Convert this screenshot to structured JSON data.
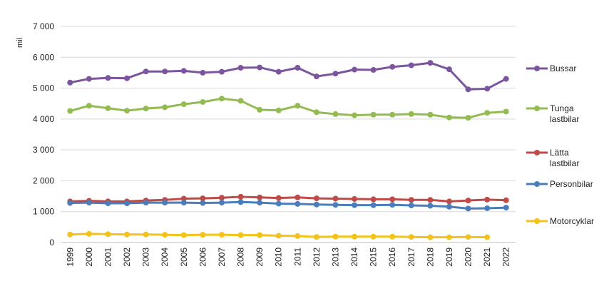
{
  "chart_data": {
    "type": "line",
    "title": "",
    "xlabel": "",
    "ylabel": "mil",
    "ylim": [
      0,
      7000
    ],
    "yticks": [
      0,
      1000,
      2000,
      3000,
      4000,
      5000,
      6000,
      7000
    ],
    "ytick_labels": [
      "0",
      "1 000",
      "2 000",
      "3 000",
      "4 000",
      "5 000",
      "6 000",
      "7 000"
    ],
    "grid": true,
    "legend_position": "right",
    "categories": [
      "1999",
      "2000",
      "2001",
      "2002",
      "2003",
      "2004",
      "2005",
      "2006",
      "2007",
      "2008",
      "2009",
      "2010",
      "2011",
      "2012",
      "2013",
      "2014",
      "2015",
      "2016",
      "2017",
      "2018",
      "2019",
      "2020",
      "2021",
      "2022"
    ],
    "series": [
      {
        "name": "Bussar",
        "legend_lines": [
          "Bussar"
        ],
        "color": "#7B559E",
        "values": [
          5180,
          5300,
          5330,
          5320,
          5540,
          5540,
          5560,
          5500,
          5530,
          5660,
          5670,
          5530,
          5660,
          5380,
          5470,
          5600,
          5590,
          5690,
          5740,
          5820,
          5610,
          4960,
          4980,
          5300
        ]
      },
      {
        "name": "Tunga lastbilar",
        "legend_lines": [
          "Tunga",
          "lastbilar"
        ],
        "color": "#94BB52",
        "values": [
          4260,
          4430,
          4350,
          4270,
          4340,
          4380,
          4480,
          4550,
          4660,
          4590,
          4300,
          4280,
          4430,
          4220,
          4160,
          4120,
          4140,
          4140,
          4160,
          4140,
          4050,
          4040,
          4200,
          4240
        ]
      },
      {
        "name": "Lätta lastbilar",
        "legend_lines": [
          "Lätta",
          "lastbilar"
        ],
        "color": "#BE4B48",
        "values": [
          1330,
          1350,
          1330,
          1330,
          1360,
          1380,
          1420,
          1430,
          1450,
          1480,
          1460,
          1440,
          1460,
          1430,
          1420,
          1410,
          1400,
          1400,
          1380,
          1380,
          1330,
          1360,
          1390,
          1370
        ]
      },
      {
        "name": "Personbilar",
        "legend_lines": [
          "Personbilar"
        ],
        "color": "#4A7EBB",
        "values": [
          1280,
          1290,
          1270,
          1270,
          1290,
          1290,
          1290,
          1280,
          1290,
          1310,
          1290,
          1260,
          1250,
          1230,
          1220,
          1210,
          1210,
          1220,
          1200,
          1190,
          1160,
          1100,
          1110,
          1130
        ]
      },
      {
        "name": "Motorcyklar",
        "legend_lines": [
          "Motorcyklar"
        ],
        "color": "#F3C21B",
        "values": [
          260,
          280,
          270,
          260,
          260,
          250,
          240,
          250,
          250,
          240,
          240,
          220,
          210,
          180,
          190,
          190,
          190,
          190,
          180,
          170,
          170,
          180,
          170,
          null
        ]
      }
    ]
  }
}
